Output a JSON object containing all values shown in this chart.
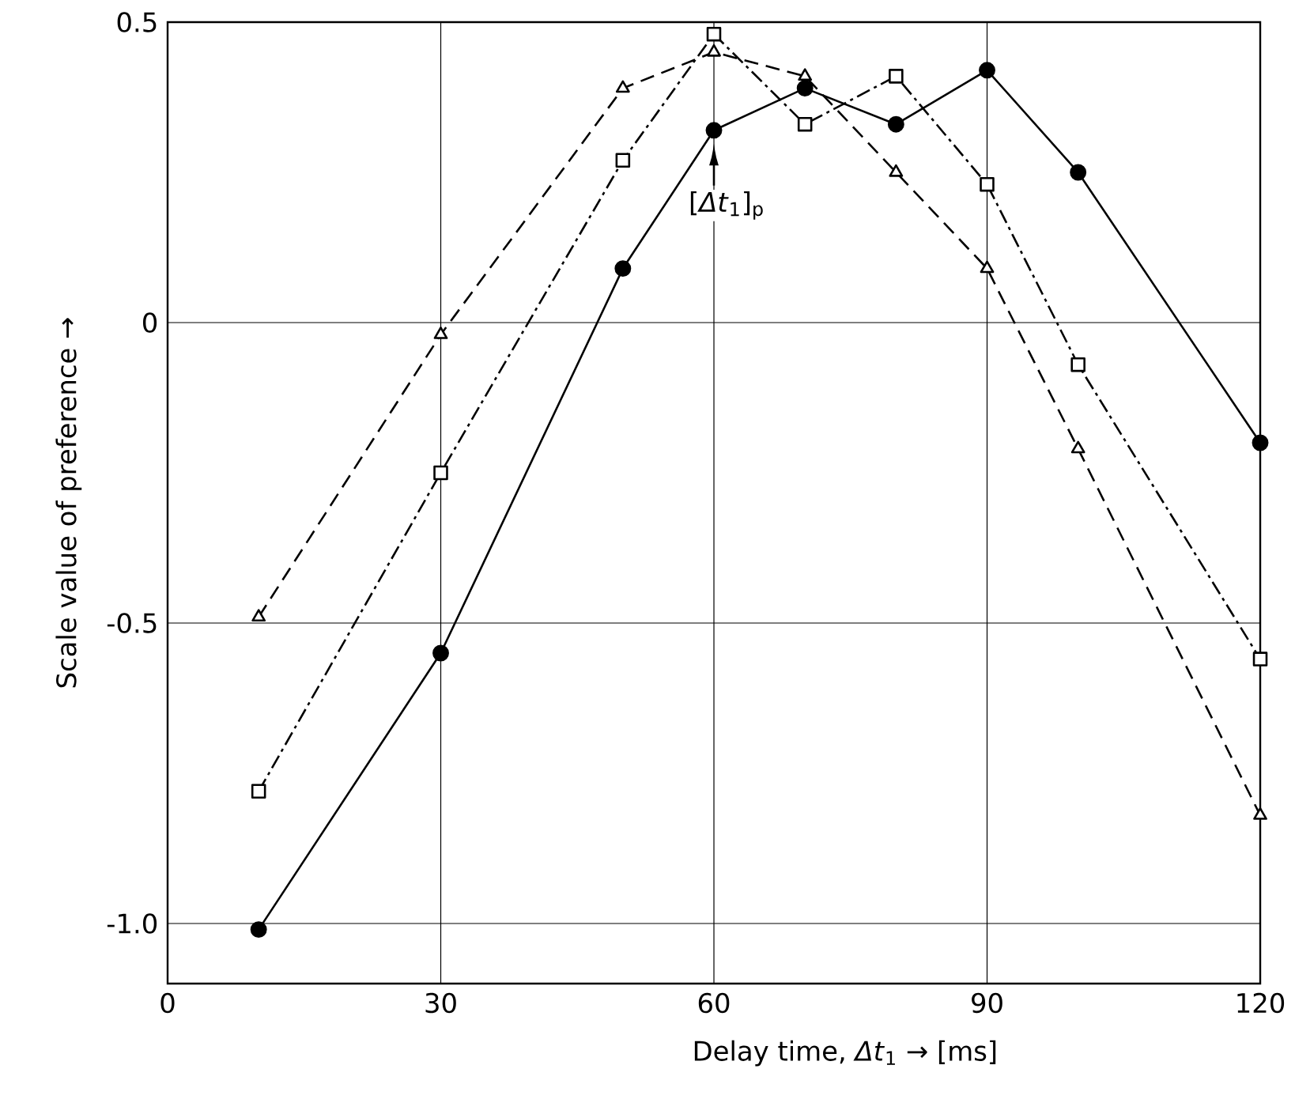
{
  "chart_data": {
    "type": "line",
    "xlabel": "Delay time, *Δt*$_{1}$ → [ms]",
    "ylabel": "Scale value of preference →",
    "x": [
      10,
      30,
      50,
      60,
      70,
      80,
      90,
      100,
      120
    ],
    "series": [
      {
        "color": "#000000",
        "marker": "circle",
        "line_style": "solid",
        "values": [
          -1.01,
          -0.55,
          0.09,
          0.32,
          0.39,
          0.33,
          0.42,
          0.25,
          -0.2
        ]
      },
      {
        "color": "#000000",
        "marker": "square",
        "line_style": "dashdot",
        "values": [
          -0.78,
          -0.25,
          0.27,
          0.48,
          0.33,
          0.41,
          0.23,
          -0.07,
          -0.56
        ]
      },
      {
        "color": "#000000",
        "marker": "triangle",
        "line_style": "dashed",
        "values": [
          -0.49,
          -0.02,
          0.39,
          0.45,
          0.41,
          0.25,
          0.09,
          -0.21,
          -0.82
        ]
      }
    ],
    "xlim": [
      0,
      120
    ],
    "ylim": [
      -1.1,
      0.5
    ],
    "xticks": [
      0,
      30,
      60,
      90,
      120
    ],
    "yticks": [
      {
        "value": -1,
        "label": "-1.0"
      },
      -0.5,
      0,
      0.5
    ],
    "grid": true,
    "annotations": [
      "[*Δt*$_{1}$]$_{p}$"
    ]
  }
}
